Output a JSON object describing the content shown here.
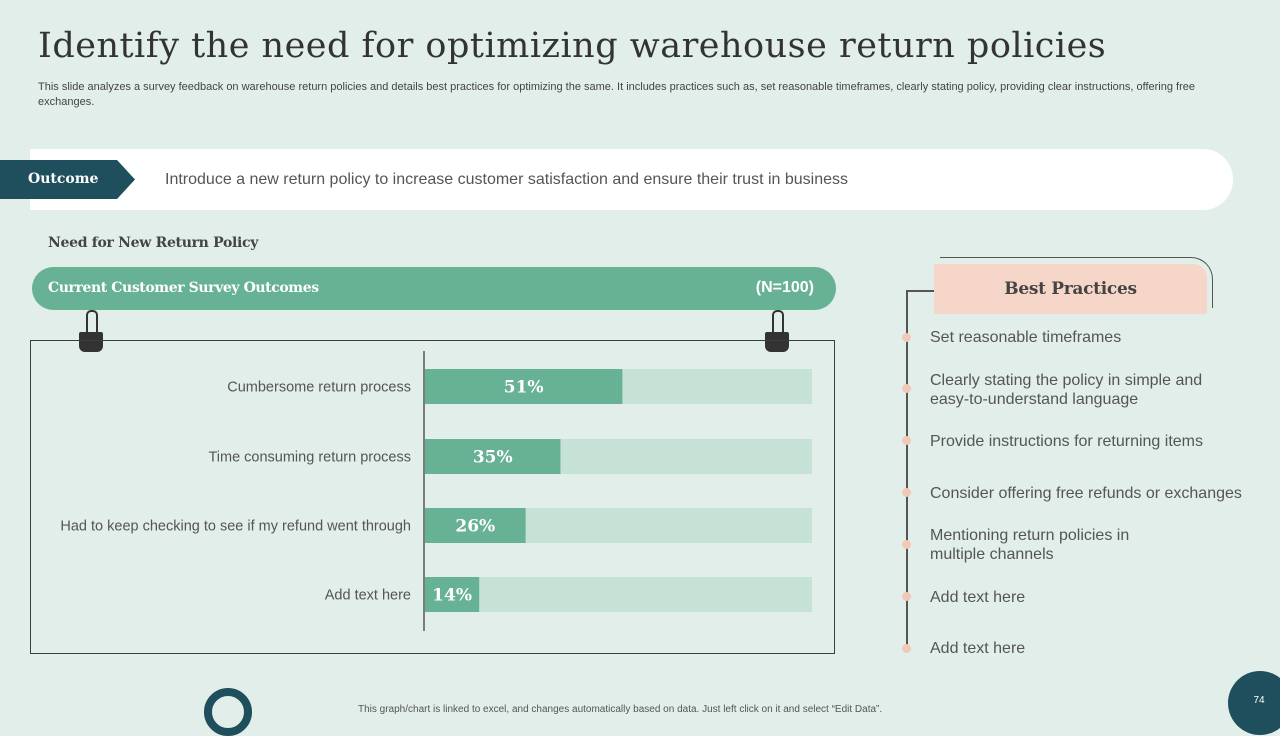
{
  "title": "Identify the need for optimizing warehouse return policies",
  "subtitle": "This slide analyzes a survey feedback on warehouse return policies and details best practices for optimizing the same. It includes practices such as, set reasonable timeframes, clearly stating policy, providing clear instructions, offering free exchanges.",
  "outcome": {
    "label": "Outcome",
    "text": "Introduce  a new return policy to increase customer satisfaction and ensure their trust  in business"
  },
  "need_section": {
    "heading": "Need for New Return Policy",
    "survey_title": "Current Customer Survey Outcomes",
    "sample_size": "(N=100)"
  },
  "chart_data": {
    "type": "bar",
    "orientation": "horizontal",
    "categories": [
      "Cumbersome return process",
      "Time consuming return process",
      "Had to keep checking to see if my refund went through",
      "Add text here"
    ],
    "values": [
      51,
      35,
      26,
      14
    ],
    "labels": [
      "51%",
      "35%",
      "26%",
      "14%"
    ],
    "xlim": [
      0,
      100
    ],
    "colors": {
      "bar": "#67b295",
      "track": "#c6e2d7"
    }
  },
  "best_practices": {
    "heading": "Best Practices",
    "items": [
      "Set reasonable timeframes",
      "Clearly stating the policy in simple and easy-to-understand  language",
      "Provide instructions  for returning items",
      "Consider offering free refunds or exchanges",
      "Mentioning return policies in multiple channels",
      "Add text here",
      "Add text here"
    ]
  },
  "footnote": "This graph/chart is linked to excel, and changes automatically based on data. Just left click on it and select “Edit Data”.",
  "page_number": "74"
}
